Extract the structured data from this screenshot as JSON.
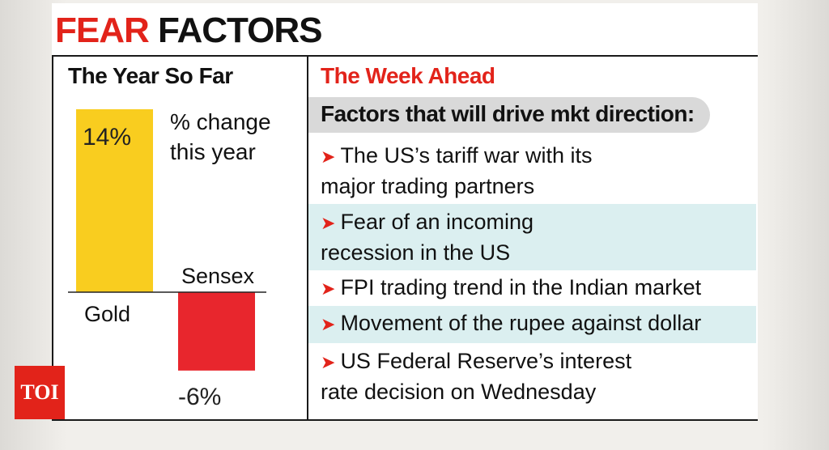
{
  "title_part1": "FEAR",
  "title_part2": "FACTORS",
  "left_header": "The Year So Far",
  "right_header": "The Week Ahead",
  "factors_header": "Factors that will drive mkt direction:",
  "factors": [
    {
      "line1": "The US’s tariff war with its",
      "line2": "major trading partners"
    },
    {
      "line1": "Fear of an incoming",
      "line2": "recession in the US"
    },
    {
      "line1": "FPI trading trend in the Indian market",
      "line2": ""
    },
    {
      "line1": "Movement of the rupee against dollar",
      "line2": ""
    },
    {
      "line1": "US Federal Reserve’s interest",
      "line2": "rate decision on Wednesday"
    }
  ],
  "arrow_glyph": "➤",
  "logo_text": "TOI",
  "colors": {
    "accent_red": "#e2231a",
    "gold": "#f9cd1f",
    "sensex": "#e8262d",
    "tint": "#dbeff0"
  },
  "chart_data": {
    "type": "bar",
    "title": "",
    "note_line1": "% change",
    "note_line2": "this year",
    "ylabel": "% change this year",
    "ylim": [
      -6,
      14
    ],
    "categories": [
      "Gold",
      "Sensex"
    ],
    "values": [
      14,
      -6
    ],
    "value_labels": [
      "14%",
      "-6%"
    ]
  }
}
